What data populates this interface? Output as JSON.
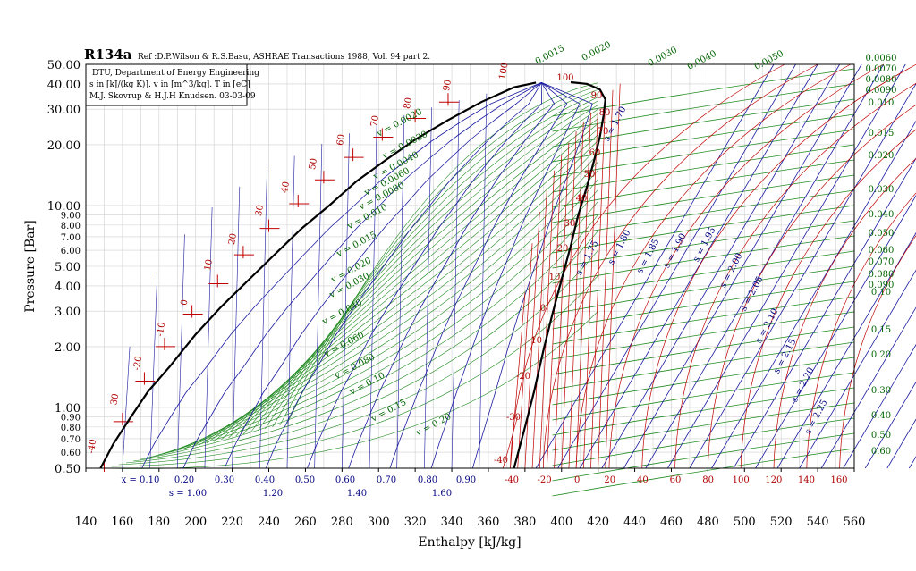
{
  "title": "R134a",
  "reference": "Ref :D.P.Wilson & R.S.Basu, ASHRAE Transactions 1988, Vol. 94 part 2.",
  "info_box": [
    "DTU, Department of Energy Engineering",
    "s in [kJ/(kg K)]. v in [m^3/kg]. T in [eC]",
    "M.J. Skovrup & H.J.H Knudsen. 03-03-09"
  ],
  "chart_data": {
    "type": "line",
    "title": "R134a",
    "xlabel": "Enthalpy [kJ/kg]",
    "ylabel": "Pressure [Bar]",
    "xlim": [
      140,
      560
    ],
    "ylim": [
      0.5,
      50
    ],
    "y_scale": "log",
    "grid": true,
    "x_ticks": [
      "140",
      "160",
      "180",
      "200",
      "220",
      "240",
      "260",
      "280",
      "300",
      "320",
      "340",
      "360",
      "380",
      "400",
      "420",
      "440",
      "460",
      "480",
      "500",
      "520",
      "540",
      "560"
    ],
    "y_ticks_major": [
      {
        "v": 50,
        "t": "50.00"
      },
      {
        "v": 40,
        "t": "40.00"
      },
      {
        "v": 30,
        "t": "30.00"
      },
      {
        "v": 20,
        "t": "20.00"
      },
      {
        "v": 10,
        "t": "10.00"
      },
      {
        "v": 5,
        "t": "5.00"
      },
      {
        "v": 4,
        "t": "4.00"
      },
      {
        "v": 3,
        "t": "3.00"
      },
      {
        "v": 2,
        "t": "2.00"
      },
      {
        "v": 1,
        "t": "1.00"
      },
      {
        "v": 0.5,
        "t": "0.50"
      }
    ],
    "y_ticks_minor": [
      {
        "v": 9,
        "t": "9.00"
      },
      {
        "v": 8,
        "t": "8.00"
      },
      {
        "v": 7,
        "t": "7.00"
      },
      {
        "v": 6,
        "t": "6.00"
      },
      {
        "v": 0.9,
        "t": "0.90"
      },
      {
        "v": 0.8,
        "t": "0.80"
      },
      {
        "v": 0.7,
        "t": "0.70"
      },
      {
        "v": 0.6,
        "t": "0.60"
      }
    ],
    "saturated_liquid": [
      [
        148,
        0.5
      ],
      [
        155,
        0.66
      ],
      [
        164,
        0.88
      ],
      [
        174,
        1.2
      ],
      [
        186,
        1.6
      ],
      [
        200,
        2.3
      ],
      [
        214,
        3.15
      ],
      [
        228,
        4.2
      ],
      [
        243,
        5.7
      ],
      [
        258,
        7.7
      ],
      [
        273,
        10.0
      ],
      [
        288,
        13.2
      ],
      [
        304,
        16.8
      ],
      [
        320,
        21.2
      ],
      [
        338,
        26.5
      ],
      [
        356,
        32.5
      ],
      [
        374,
        38.5
      ],
      [
        386,
        40.6
      ]
    ],
    "saturated_vapor": [
      [
        374,
        0.5
      ],
      [
        380,
        0.8
      ],
      [
        385,
        1.2
      ],
      [
        390,
        1.9
      ],
      [
        395,
        2.9
      ],
      [
        400,
        4.3
      ],
      [
        405,
        6.3
      ],
      [
        409,
        8.9
      ],
      [
        414,
        12.5
      ],
      [
        418,
        17.0
      ],
      [
        421,
        22.0
      ],
      [
        423,
        28.0
      ],
      [
        424,
        33.5
      ],
      [
        421,
        37.5
      ],
      [
        414,
        40.0
      ],
      [
        405,
        40.8
      ]
    ],
    "critical_point": {
      "h": 389,
      "p": 40.6
    },
    "isotherms": {
      "color": "#b00000",
      "liquid_labels": [
        "-40",
        "-30",
        "-20",
        "-10",
        "0",
        "10",
        "20",
        "30",
        "40",
        "50",
        "60",
        "70",
        "80",
        "90",
        "100"
      ],
      "vapor_labels": [
        "-40",
        "-30",
        "-20",
        "-10",
        "0",
        "10",
        "20",
        "30",
        "40",
        "50",
        "60",
        "70",
        "80",
        "90",
        "100"
      ],
      "superheat_labels": [
        "-40",
        "-20",
        "0",
        "20",
        "40",
        "60",
        "80",
        "100",
        "120",
        "140",
        "160"
      ]
    },
    "quality_lines": {
      "color": "#000080",
      "labels": [
        "x = 0.10",
        "0.20",
        "0.30",
        "0.40",
        "0.50",
        "0.60",
        "0.70",
        "0.80",
        "0.90"
      ]
    },
    "isentropes": {
      "color": "#000080",
      "bottom_labels": [
        "s = 1.00",
        "1.20",
        "1.40",
        "1.60"
      ],
      "labels": [
        "s = 1.70",
        "s = 1.75",
        "s = 1.80",
        "s = 1.85",
        "s = 1.90",
        "s = 1.95",
        "s = 2.00",
        "s = 2.05",
        "s = 2.10",
        "s = 2.15",
        "s = 2.20",
        "s = 2.25"
      ]
    },
    "isochores": {
      "color": "#006400",
      "two_phase_labels": [
        "v = 0.0020",
        "v = 0.0030",
        "v = 0.0040",
        "v = 0.0060",
        "v = 0.0080",
        "v = 0.010",
        "v = 0.015",
        "v = 0.020",
        "v = 0.030",
        "v = 0.040",
        "v = 0.060",
        "v = 0.080",
        "v = 0.10",
        "v = 0.15",
        "v = 0.20"
      ],
      "top_labels": [
        "0.0015",
        "0.0020",
        "0.0030",
        "0.0040",
        "0.0050",
        "0.0060",
        "0.0070",
        "0.0080",
        "0.0090"
      ],
      "right_labels": [
        "0.010",
        "0.015",
        "0.020",
        "0.030",
        "0.040",
        "0.050",
        "0.060",
        "0.070",
        "0.080",
        "0.090",
        "0.10",
        "0.15",
        "0.20",
        "0.30",
        "0.40",
        "0.50",
        "0.60"
      ]
    }
  }
}
